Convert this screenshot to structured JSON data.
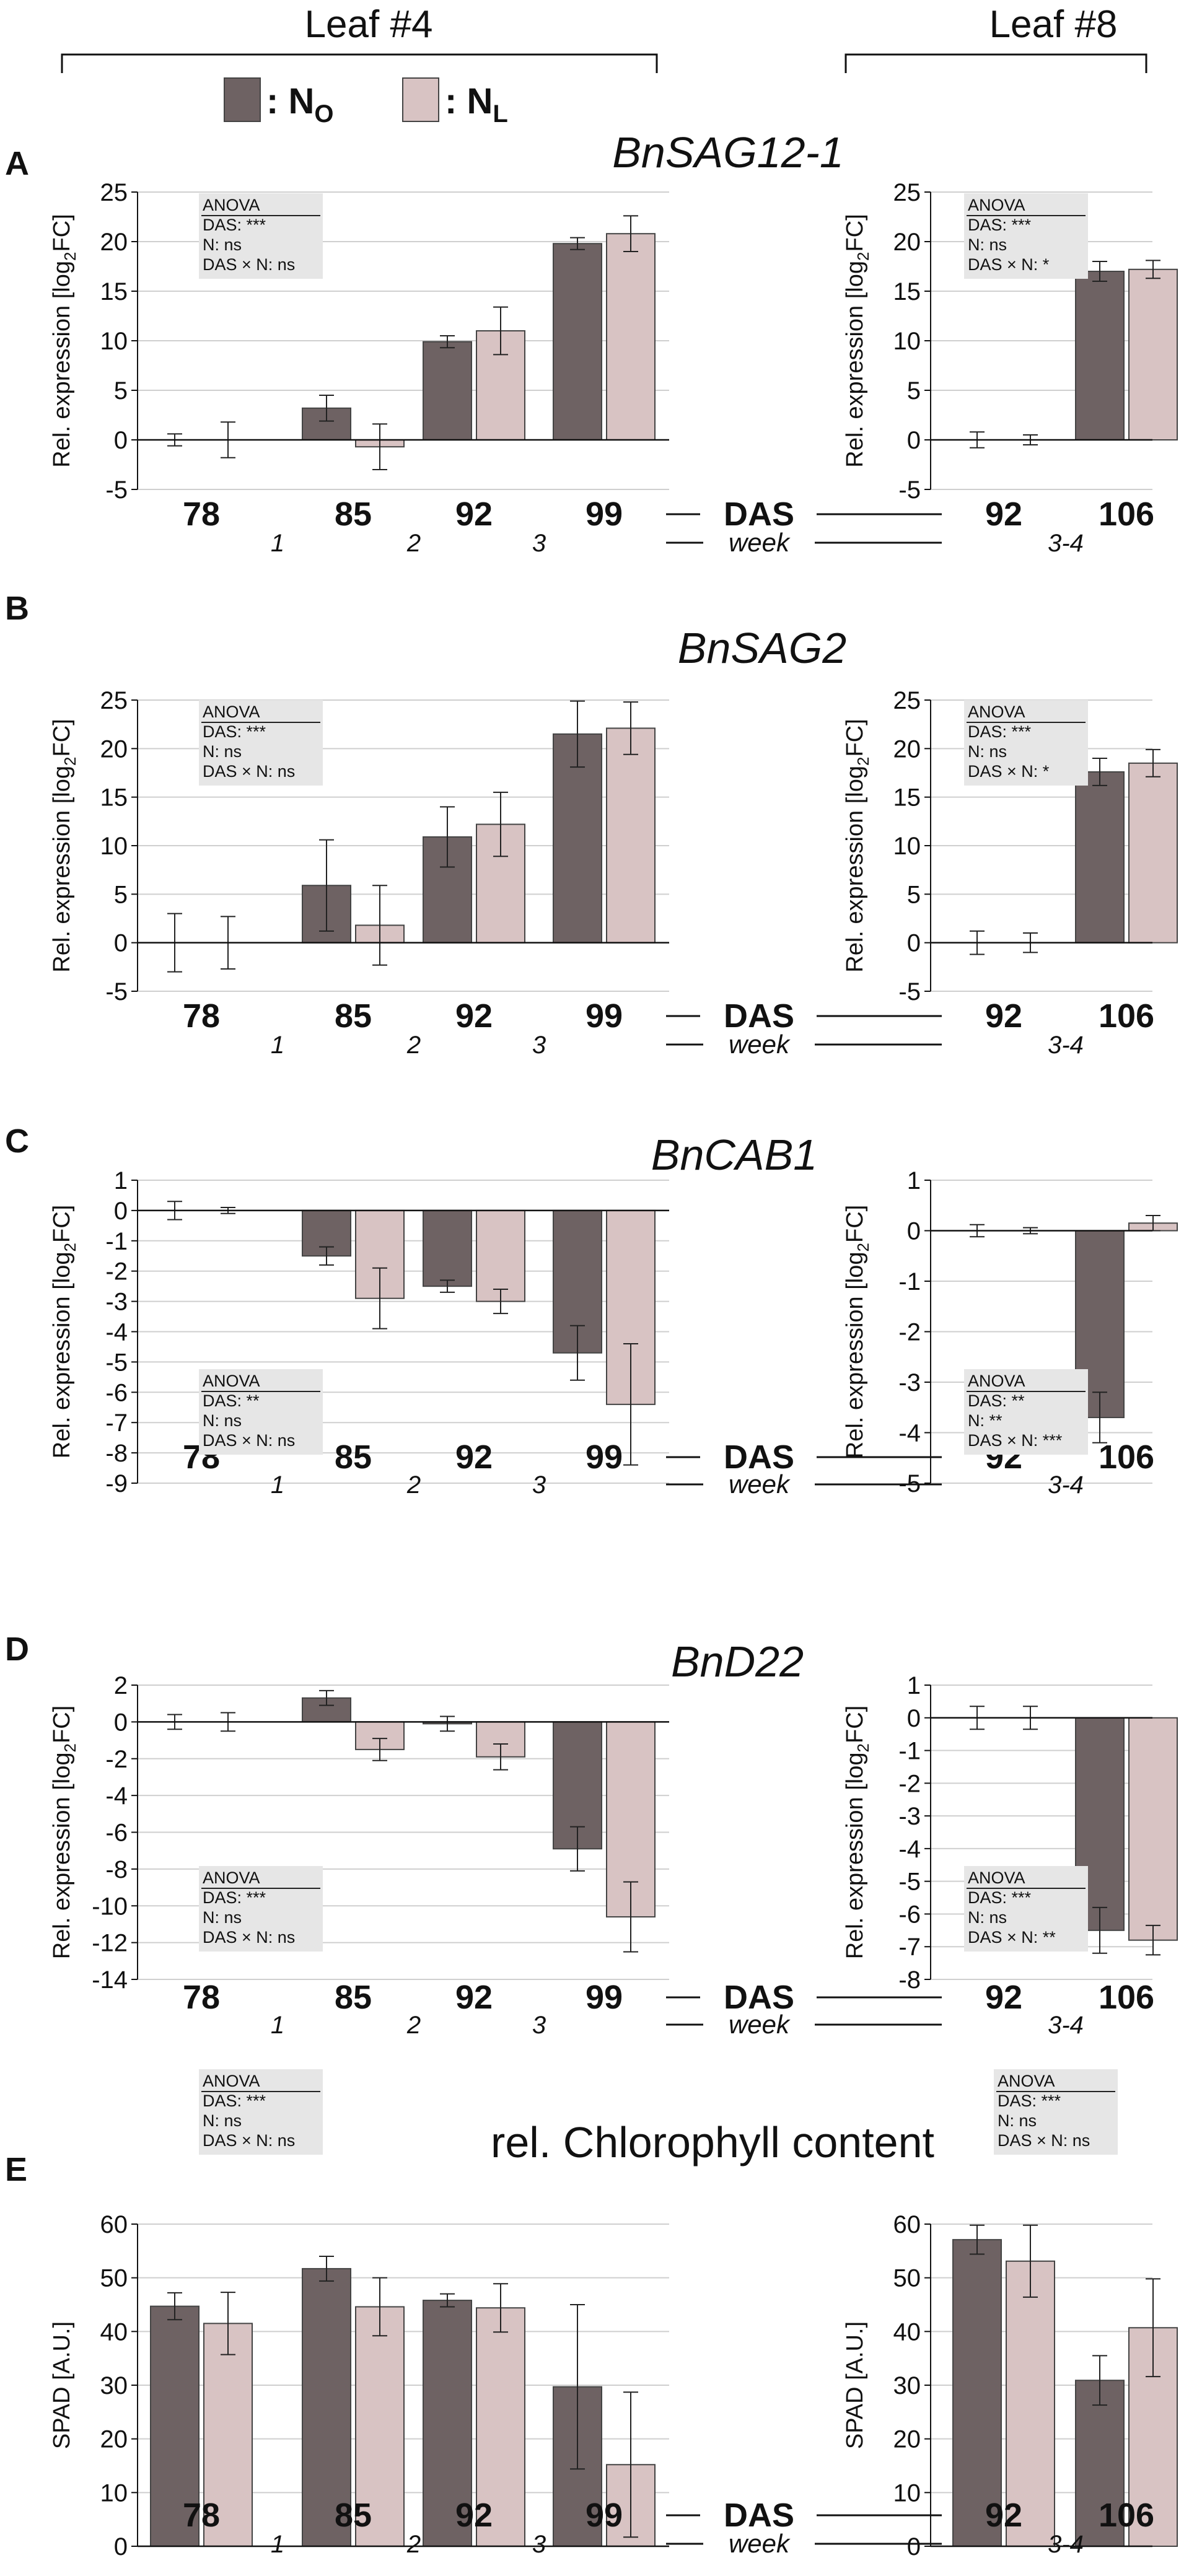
{
  "figure": {
    "leaf_left": "Leaf #4",
    "leaf_right": "Leaf #8",
    "legend": [
      {
        "symbol": "N",
        "sub": "O",
        "prefix": ": ",
        "color": "#6e6263"
      },
      {
        "symbol": "N",
        "sub": "L",
        "prefix": ": ",
        "color": "#d8c3c3"
      }
    ],
    "das_label": "DAS",
    "week_label": "week",
    "colors": {
      "no": "#6e6263",
      "nl": "#d8c3c3",
      "grid": "#cfcfcf",
      "anova_bg": "#e6e6e6"
    }
  },
  "chart_data": [
    {
      "type": "bar",
      "panel": "A",
      "title": "BnSAG12-1",
      "ylabel": "Rel. expression [log2FC]",
      "legend": [
        "NO",
        "NL"
      ],
      "anova": [
        "ANOVA",
        "DAS: ***",
        "N: ns",
        "DAS × N: ns"
      ],
      "anova_right": [
        "ANOVA",
        "DAS: ***",
        "N: ns",
        "DAS × N: *"
      ],
      "left": {
        "categories": [
          "78",
          "85",
          "92",
          "99"
        ],
        "weeks": [
          "1",
          "2",
          "3"
        ],
        "ylim": [
          -5,
          25
        ],
        "ticks": [
          -5,
          0,
          5,
          10,
          15,
          20,
          25
        ],
        "series": [
          {
            "name": "NO",
            "values": [
              0,
              3.2,
              9.9,
              19.8
            ],
            "errors": [
              0.6,
              1.3,
              0.6,
              0.6
            ]
          },
          {
            "name": "NL",
            "values": [
              0,
              -0.7,
              11.0,
              20.8
            ],
            "errors": [
              1.8,
              2.3,
              2.4,
              1.8
            ]
          }
        ]
      },
      "right": {
        "categories": [
          "92",
          "106"
        ],
        "weeks": [
          "3-4"
        ],
        "ylim": [
          -5,
          25
        ],
        "ticks": [
          -5,
          0,
          5,
          10,
          15,
          20,
          25
        ],
        "series": [
          {
            "name": "NO",
            "values": [
              0,
              17.0
            ],
            "errors": [
              0.8,
              1.0
            ]
          },
          {
            "name": "NL",
            "values": [
              0,
              17.2
            ],
            "errors": [
              0.5,
              0.9
            ]
          }
        ]
      }
    },
    {
      "type": "bar",
      "panel": "B",
      "title": "BnSAG2",
      "ylabel": "Rel. expression [log2FC]",
      "legend": [
        "NO",
        "NL"
      ],
      "anova": [
        "ANOVA",
        "DAS: ***",
        "N: ns",
        "DAS × N: ns"
      ],
      "anova_right": [
        "ANOVA",
        "DAS: ***",
        "N: ns",
        "DAS × N: *"
      ],
      "left": {
        "categories": [
          "78",
          "85",
          "92",
          "99"
        ],
        "weeks": [
          "1",
          "2",
          "3"
        ],
        "ylim": [
          -5,
          25
        ],
        "ticks": [
          -5,
          0,
          5,
          10,
          15,
          20,
          25
        ],
        "series": [
          {
            "name": "NO",
            "values": [
              0,
              5.9,
              10.9,
              21.5
            ],
            "errors": [
              3.0,
              4.7,
              3.1,
              3.4
            ]
          },
          {
            "name": "NL",
            "values": [
              0,
              1.8,
              12.2,
              22.1
            ],
            "errors": [
              2.7,
              4.1,
              3.3,
              2.7
            ]
          }
        ]
      },
      "right": {
        "categories": [
          "92",
          "106"
        ],
        "weeks": [
          "3-4"
        ],
        "ylim": [
          -5,
          25
        ],
        "ticks": [
          -5,
          0,
          5,
          10,
          15,
          20,
          25
        ],
        "series": [
          {
            "name": "NO",
            "values": [
              0,
              17.6
            ],
            "errors": [
              1.2,
              1.4
            ]
          },
          {
            "name": "NL",
            "values": [
              0,
              18.5
            ],
            "errors": [
              1.0,
              1.4
            ]
          }
        ]
      }
    },
    {
      "type": "bar",
      "panel": "C",
      "title": "BnCAB1",
      "ylabel": "Rel. expression [log2FC]",
      "legend": [
        "NO",
        "NL"
      ],
      "anova": [
        "ANOVA",
        "DAS: **",
        "N: ns",
        "DAS × N: ns"
      ],
      "anova_right": [
        "ANOVA",
        "DAS: **",
        "N: **",
        "DAS × N: ***"
      ],
      "left": {
        "categories": [
          "78",
          "85",
          "92",
          "99"
        ],
        "weeks": [
          "1",
          "2",
          "3"
        ],
        "ylim": [
          -9,
          1
        ],
        "ticks": [
          -9,
          -8,
          -7,
          -6,
          -5,
          -4,
          -3,
          -2,
          -1,
          0,
          1
        ],
        "series": [
          {
            "name": "NO",
            "values": [
              0,
              -1.5,
              -2.5,
              -4.7
            ],
            "errors": [
              0.3,
              0.3,
              0.2,
              0.9
            ]
          },
          {
            "name": "NL",
            "values": [
              0,
              -2.9,
              -3.0,
              -6.4
            ],
            "errors": [
              0.1,
              1.0,
              0.4,
              2.0
            ]
          }
        ]
      },
      "right": {
        "categories": [
          "92",
          "106"
        ],
        "weeks": [
          "3-4"
        ],
        "ylim": [
          -5,
          1
        ],
        "ticks": [
          -5,
          -4,
          -3,
          -2,
          -1,
          0,
          1
        ],
        "series": [
          {
            "name": "NO",
            "values": [
              0,
              -3.7
            ],
            "errors": [
              0.12,
              0.5
            ]
          },
          {
            "name": "NL",
            "values": [
              0,
              0.15
            ],
            "errors": [
              0.06,
              0.15
            ]
          }
        ]
      }
    },
    {
      "type": "bar",
      "panel": "D",
      "title": "BnD22",
      "ylabel": "Rel. expression [log2FC]",
      "legend": [
        "NO",
        "NL"
      ],
      "anova": [
        "ANOVA",
        "DAS: ***",
        "N: ns",
        "DAS × N: ns"
      ],
      "anova_right": [
        "ANOVA",
        "DAS: ***",
        "N: ns",
        "DAS × N: **"
      ],
      "left": {
        "categories": [
          "78",
          "85",
          "92",
          "99"
        ],
        "weeks": [
          "1",
          "2",
          "3"
        ],
        "ylim": [
          -14,
          2
        ],
        "ticks": [
          -14,
          -12,
          -10,
          -8,
          -6,
          -4,
          -2,
          0,
          2
        ],
        "series": [
          {
            "name": "NO",
            "values": [
              0,
              1.3,
              -0.1,
              -6.9
            ],
            "errors": [
              0.4,
              0.4,
              0.4,
              1.2
            ]
          },
          {
            "name": "NL",
            "values": [
              0,
              -1.5,
              -1.9,
              -10.6
            ],
            "errors": [
              0.5,
              0.6,
              0.7,
              1.9
            ]
          }
        ]
      },
      "right": {
        "categories": [
          "92",
          "106"
        ],
        "weeks": [
          "3-4"
        ],
        "ylim": [
          -8,
          1
        ],
        "ticks": [
          -8,
          -7,
          -6,
          -5,
          -4,
          -3,
          -2,
          -1,
          0,
          1
        ],
        "series": [
          {
            "name": "NO",
            "values": [
              0,
              -6.5
            ],
            "errors": [
              0.35,
              0.7
            ]
          },
          {
            "name": "NL",
            "values": [
              0,
              -6.8
            ],
            "errors": [
              0.35,
              0.45
            ]
          }
        ]
      }
    },
    {
      "type": "bar",
      "panel": "E",
      "title": "rel. Chlorophyll content",
      "ylabel": "SPAD [A.U.]",
      "legend": [
        "NO",
        "NL"
      ],
      "anova": [
        "ANOVA",
        "DAS: ***",
        "N: ns",
        "DAS × N: ns"
      ],
      "anova_right": [
        "ANOVA",
        "DAS: ***",
        "N: ns",
        "DAS × N: ns"
      ],
      "left": {
        "categories": [
          "78",
          "85",
          "92",
          "99"
        ],
        "weeks": [
          "1",
          "2",
          "3"
        ],
        "ylim": [
          0,
          60
        ],
        "ticks": [
          0,
          10,
          20,
          30,
          40,
          50,
          60
        ],
        "series": [
          {
            "name": "NO",
            "values": [
              44.7,
              51.7,
              45.8,
              29.7
            ],
            "errors": [
              2.5,
              2.3,
              1.2,
              15.3
            ]
          },
          {
            "name": "NL",
            "values": [
              41.5,
              44.6,
              44.4,
              15.2
            ],
            "errors": [
              5.8,
              5.4,
              4.5,
              13.5
            ]
          }
        ]
      },
      "right": {
        "categories": [
          "92",
          "106"
        ],
        "weeks": [
          "3-4"
        ],
        "ylim": [
          0,
          60
        ],
        "ticks": [
          0,
          10,
          20,
          30,
          40,
          50,
          60
        ],
        "series": [
          {
            "name": "NO",
            "values": [
              57.1,
              30.9
            ],
            "errors": [
              2.7,
              4.6
            ]
          },
          {
            "name": "NL",
            "values": [
              53.1,
              40.7
            ],
            "errors": [
              6.7,
              9.1
            ]
          }
        ]
      }
    }
  ]
}
